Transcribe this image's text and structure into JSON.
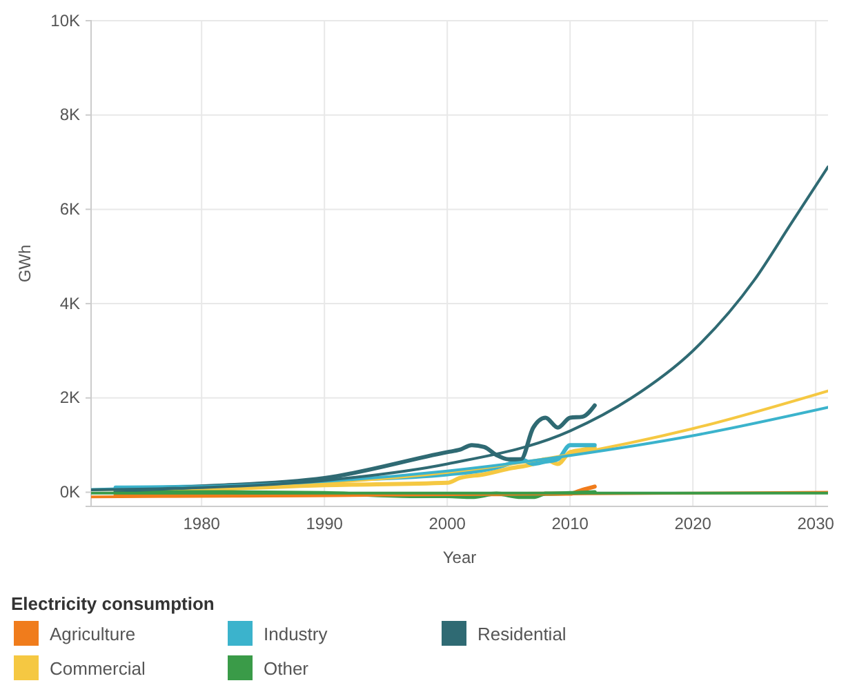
{
  "chart_data": {
    "type": "line",
    "xlabel": "Year",
    "ylabel": "GWh",
    "legend_title": "Electricity consumption",
    "legend": "bottom",
    "grid": true,
    "xlim": [
      1971,
      2031
    ],
    "xticks": [
      1980,
      1990,
      2000,
      2010,
      2020,
      2030
    ],
    "ylim": [
      -300,
      10000
    ],
    "yticks": [
      {
        "value": 0,
        "label": "0K"
      },
      {
        "value": 2000,
        "label": "2K"
      },
      {
        "value": 4000,
        "label": "4K"
      },
      {
        "value": 6000,
        "label": "6K"
      },
      {
        "value": 8000,
        "label": "8K"
      },
      {
        "value": 10000,
        "label": "10K"
      }
    ],
    "series": [
      {
        "name": "Agriculture",
        "color": "#f07c1c",
        "x": [
          1973,
          1980,
          1990,
          2000,
          2005,
          2010,
          2011,
          2012
        ],
        "values": [
          -60,
          -70,
          -60,
          -40,
          -40,
          -30,
          50,
          120
        ]
      },
      {
        "name": "Commercial",
        "color": "#f5c842",
        "x": [
          1973,
          1980,
          1990,
          2000,
          2001,
          2003,
          2005,
          2007,
          2008,
          2009,
          2010,
          2011,
          2012
        ],
        "values": [
          30,
          60,
          150,
          200,
          300,
          380,
          500,
          600,
          700,
          600,
          850,
          900,
          950
        ]
      },
      {
        "name": "Industry",
        "color": "#3bb3cc",
        "x": [
          1973,
          1980,
          1990,
          2000,
          2005,
          2006,
          2007,
          2008,
          2009,
          2010,
          2011,
          2012
        ],
        "values": [
          100,
          120,
          250,
          380,
          600,
          700,
          600,
          650,
          700,
          1000,
          1000,
          1000
        ]
      },
      {
        "name": "Other",
        "color": "#3a9b48",
        "x": [
          1973,
          1980,
          1990,
          1997,
          2000,
          2002,
          2004,
          2006,
          2007,
          2008,
          2010,
          2012
        ],
        "values": [
          0,
          0,
          -20,
          -80,
          -80,
          -100,
          -30,
          -100,
          -100,
          -30,
          -20,
          0
        ]
      },
      {
        "name": "Residential",
        "color": "#2f6a73",
        "x": [
          1973,
          1980,
          1990,
          2000,
          2001,
          2002,
          2003,
          2004,
          2005,
          2006,
          2007,
          2008,
          2009,
          2010,
          2011,
          2012
        ],
        "values": [
          30,
          120,
          300,
          850,
          900,
          1000,
          960,
          790,
          700,
          700,
          1370,
          1580,
          1370,
          1580,
          1600,
          1840
        ]
      },
      {
        "color": "#f07c1c",
        "x": [
          1971,
          2031
        ],
        "values": [
          -100,
          0
        ]
      },
      {
        "color": "#f5c842",
        "x": [
          1971,
          1980,
          1990,
          2000,
          2010,
          2020,
          2031
        ],
        "values": [
          50,
          100,
          200,
          420,
          800,
          1350,
          2150
        ]
      },
      {
        "color": "#3bb3cc",
        "x": [
          1971,
          1980,
          1990,
          2000,
          2010,
          2020,
          2031
        ],
        "values": [
          60,
          120,
          230,
          450,
          780,
          1200,
          1800
        ]
      },
      {
        "color": "#3a9b48",
        "x": [
          1971,
          2031
        ],
        "values": [
          -20,
          -20
        ]
      },
      {
        "color": "#2f6a73",
        "x": [
          1971,
          1980,
          1990,
          2000,
          2010,
          2015,
          2020,
          2025,
          2028,
          2031
        ],
        "values": [
          50,
          100,
          250,
          600,
          1300,
          2000,
          3000,
          4500,
          5700,
          6900
        ]
      }
    ]
  }
}
